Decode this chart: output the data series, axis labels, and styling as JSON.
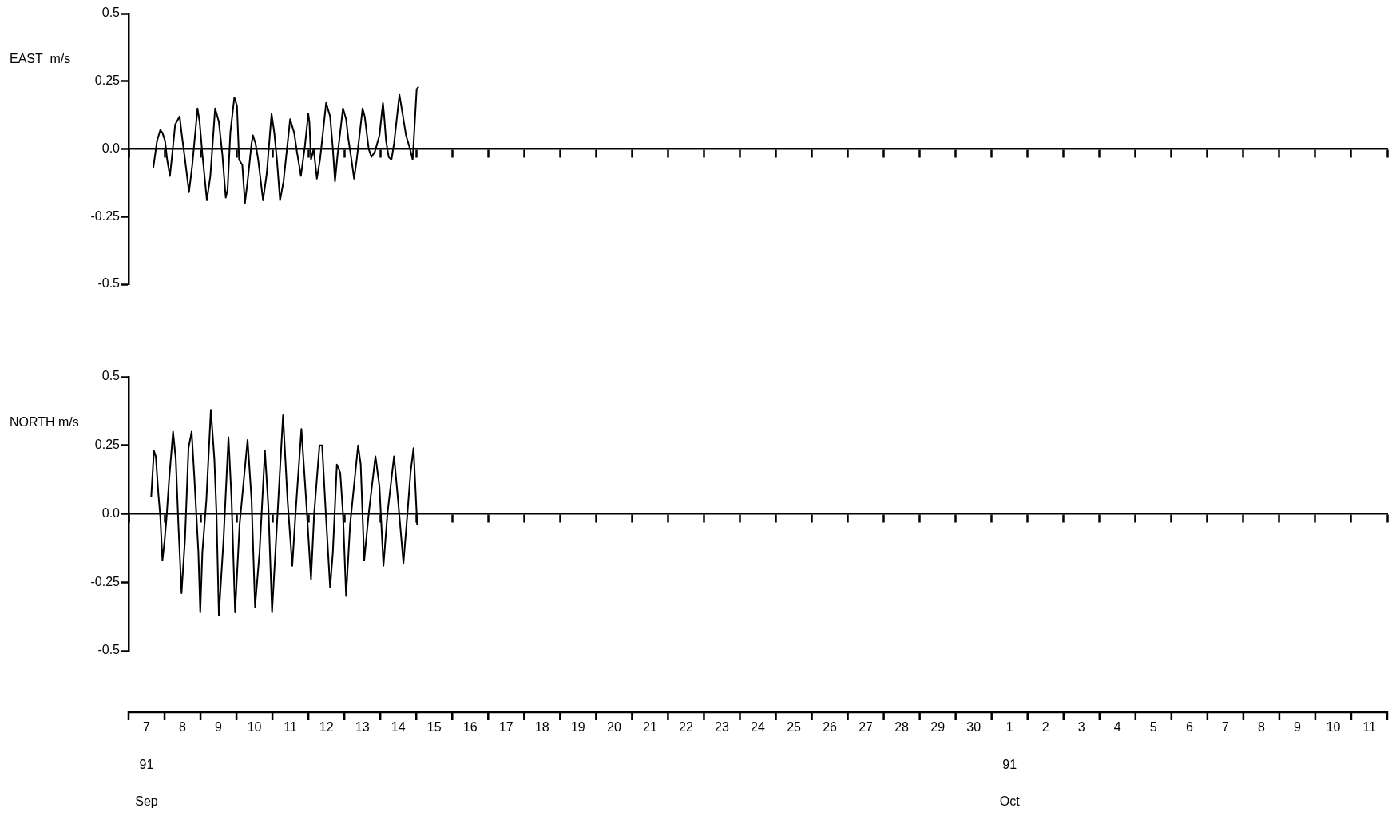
{
  "chart_data": [
    {
      "type": "line",
      "ylabel": "EAST  m/s",
      "color": "#000000",
      "tick_labels": "y",
      "xlim": [
        "--09-07",
        "--10-12"
      ],
      "ylim": [
        -0.5,
        0.5
      ],
      "yticks": [
        -0.5,
        -0.25,
        {
          "value": 0,
          "label": "0.0"
        },
        0.25,
        0.5
      ],
      "xticks": [
        {
          "value": "--09-07",
          "label": null
        },
        {
          "value": "--09-08",
          "label": null
        },
        {
          "value": "--09-09",
          "label": null
        },
        {
          "value": "--09-10",
          "label": null
        },
        {
          "value": "--09-11",
          "label": null
        },
        {
          "value": "--09-12",
          "label": null
        },
        {
          "value": "--09-13",
          "label": null
        },
        {
          "value": "--09-14",
          "label": null
        },
        {
          "value": "--09-15",
          "label": null
        },
        {
          "value": "--09-16",
          "label": null
        },
        {
          "value": "--09-17",
          "label": null
        },
        {
          "value": "--09-18",
          "label": null
        },
        {
          "value": "--09-19",
          "label": null
        },
        {
          "value": "--09-20",
          "label": null
        },
        {
          "value": "--09-21",
          "label": null
        },
        {
          "value": "--09-22",
          "label": null
        },
        {
          "value": "--09-23",
          "label": null
        },
        {
          "value": "--09-24",
          "label": null
        },
        {
          "value": "--09-25",
          "label": null
        },
        {
          "value": "--09-26",
          "label": null
        },
        {
          "value": "--09-27",
          "label": null
        },
        {
          "value": "--09-28",
          "label": null
        },
        {
          "value": "--09-29",
          "label": null
        },
        {
          "value": "--09-30",
          "label": null
        },
        {
          "value": "--10-01",
          "label": null
        },
        {
          "value": "--10-02",
          "label": null
        },
        {
          "value": "--10-03",
          "label": null
        },
        {
          "value": "--10-04",
          "label": null
        },
        {
          "value": "--10-05",
          "label": null
        },
        {
          "value": "--10-06",
          "label": null
        },
        {
          "value": "--10-07",
          "label": null
        },
        {
          "value": "--10-08",
          "label": null
        },
        {
          "value": "--10-09",
          "label": null
        },
        {
          "value": "--10-10",
          "label": null
        },
        {
          "value": "--10-11",
          "label": null
        },
        {
          "value": "--10-12",
          "label": null
        }
      ],
      "x": [
        "--09-07T16:30",
        "--09-07T19:00",
        "--09-07T21:10",
        "--09-07T22:35",
        "--09-08T00:20",
        "--09-08T01:45",
        "--09-08T03:35",
        "--09-08T04:45",
        "--09-08T07:05",
        "--09-08T10:05",
        "--09-08T11:20",
        "--09-08T13:40",
        "--09-08T16:20",
        "--09-08T18:30",
        "--09-08T21:20",
        "--09-08T22:00",
        "--09-08T23:25",
        "--09-09T01:15",
        "--09-09T04:15",
        "--09-09T06:35",
        "--09-09T09:45",
        "--09-09T12:15",
        "--09-09T14:35",
        "--09-09T16:50",
        "--09-09T18:05",
        "--09-09T19:55",
        "--09-09T22:35",
        "--09-10T00:20",
        "--09-10T01:45",
        "--09-10T03:55",
        "--09-10T05:40",
        "--09-10T07:25",
        "--09-10T10:05",
        "--09-10T11:00",
        "--09-10T12:45",
        "--09-10T14:30",
        "--09-10T17:45",
        "--09-10T20:15",
        "--09-10T23:25",
        "--09-11T01:15",
        "--09-11T03:00",
        "--09-11T05:05",
        "--09-11T07:25",
        "--09-11T11:50",
        "--09-11T14:30",
        "--09-11T16:20",
        "--09-11T19:00",
        "--09-11T21:40",
        "--09-11T23:55",
        "--09-12T00:40",
        "--09-12T01:45",
        "--09-12T03:30",
        "--09-12T05:40",
        "--09-12T07:45",
        "--09-12T11:50",
        "--09-12T14:30",
        "--09-12T16:20",
        "--09-12T17:45",
        "--09-12T19:30",
        "--09-12T23:05",
        "--09-13T01:10",
        "--09-13T02:35",
        "--09-13T04:45",
        "--09-13T06:30",
        "--09-13T08:15",
        "--09-13T12:10",
        "--09-13T13:35",
        "--09-13T16:15",
        "--09-13T18:05",
        "--09-13T20:25",
        "--09-13T23:25",
        "--09-14T01:45",
        "--09-14T02:35",
        "--09-14T03:50",
        "--09-14T05:35",
        "--09-14T07:25",
        "--09-14T09:10",
        "--09-14T12:45",
        "--09-14T14:50",
        "--09-14T17:10",
        "--09-14T19:50",
        "--09-14T21:35",
        "--09-15T00:15",
        "--09-15T01:30"
      ],
      "values": [
        -0.07,
        0.03,
        0.07,
        0.06,
        0.03,
        -0.04,
        -0.1,
        -0.04,
        0.09,
        0.12,
        0.06,
        -0.04,
        -0.16,
        -0.06,
        0.11,
        0.15,
        0.1,
        -0.02,
        -0.19,
        -0.1,
        0.15,
        0.1,
        -0.02,
        -0.18,
        -0.15,
        0.06,
        0.19,
        0.16,
        -0.04,
        -0.06,
        -0.2,
        -0.12,
        0.02,
        0.05,
        0.02,
        -0.04,
        -0.19,
        -0.09,
        0.13,
        0.06,
        -0.04,
        -0.19,
        -0.12,
        0.11,
        0.06,
        -0.01,
        -0.1,
        0.01,
        0.13,
        0.1,
        -0.04,
        0.0,
        -0.11,
        -0.04,
        0.17,
        0.12,
        0.0,
        -0.12,
        -0.02,
        0.15,
        0.11,
        0.04,
        -0.04,
        -0.11,
        -0.04,
        0.15,
        0.12,
        0.0,
        -0.03,
        -0.01,
        0.05,
        0.17,
        0.12,
        0.03,
        -0.03,
        -0.04,
        0.02,
        0.2,
        0.13,
        0.05,
        0.0,
        -0.04,
        0.22,
        0.23
      ]
    },
    {
      "type": "line",
      "ylabel": "NORTH m/s",
      "color": "#000000",
      "annotations": [
        "91",
        "Sep",
        "91",
        "Oct"
      ],
      "xlim": [
        "--09-07",
        "--10-12"
      ],
      "ylim": [
        -0.5,
        0.5
      ],
      "yticks": [
        -0.5,
        -0.25,
        {
          "value": 0,
          "label": "0.0"
        },
        0.25,
        0.5
      ],
      "xticks": [
        {
          "value": "--09-07",
          "label": null
        },
        {
          "value": "--09-07T12:00",
          "label": "7"
        },
        {
          "value": "--09-08",
          "label": null
        },
        {
          "value": "--09-08T12:00",
          "label": "8"
        },
        {
          "value": "--09-09",
          "label": null
        },
        {
          "value": "--09-09T12:00",
          "label": "9"
        },
        {
          "value": "--09-10",
          "label": null
        },
        {
          "value": "--09-10T12:00",
          "label": "10"
        },
        {
          "value": "--09-11",
          "label": null
        },
        {
          "value": "--09-11T12:00",
          "label": "11"
        },
        {
          "value": "--09-12",
          "label": null
        },
        {
          "value": "--09-12T12:00",
          "label": "12"
        },
        {
          "value": "--09-13",
          "label": null
        },
        {
          "value": "--09-13T12:00",
          "label": "13"
        },
        {
          "value": "--09-14",
          "label": null
        },
        {
          "value": "--09-14T12:00",
          "label": "14"
        },
        {
          "value": "--09-15",
          "label": null
        },
        {
          "value": "--09-15T12:00",
          "label": "15"
        },
        {
          "value": "--09-16",
          "label": null
        },
        {
          "value": "--09-16T12:00",
          "label": "16"
        },
        {
          "value": "--09-17",
          "label": null
        },
        {
          "value": "--09-17T12:00",
          "label": "17"
        },
        {
          "value": "--09-18",
          "label": null
        },
        {
          "value": "--09-18T12:00",
          "label": "18"
        },
        {
          "value": "--09-19",
          "label": null
        },
        {
          "value": "--09-19T12:00",
          "label": "19"
        },
        {
          "value": "--09-20",
          "label": null
        },
        {
          "value": "--09-20T12:00",
          "label": "20"
        },
        {
          "value": "--09-21",
          "label": null
        },
        {
          "value": "--09-21T12:00",
          "label": "21"
        },
        {
          "value": "--09-22",
          "label": null
        },
        {
          "value": "--09-22T12:00",
          "label": "22"
        },
        {
          "value": "--09-23",
          "label": null
        },
        {
          "value": "--09-23T12:00",
          "label": "23"
        },
        {
          "value": "--09-24",
          "label": null
        },
        {
          "value": "--09-24T12:00",
          "label": "24"
        },
        {
          "value": "--09-25",
          "label": null
        },
        {
          "value": "--09-25T12:00",
          "label": "25"
        },
        {
          "value": "--09-26",
          "label": null
        },
        {
          "value": "--09-26T12:00",
          "label": "26"
        },
        {
          "value": "--09-27",
          "label": null
        },
        {
          "value": "--09-27T12:00",
          "label": "27"
        },
        {
          "value": "--09-28",
          "label": null
        },
        {
          "value": "--09-28T12:00",
          "label": "28"
        },
        {
          "value": "--09-29",
          "label": null
        },
        {
          "value": "--09-29T12:00",
          "label": "29"
        },
        {
          "value": "--09-30",
          "label": null
        },
        {
          "value": "--09-30T12:00",
          "label": "30"
        },
        {
          "value": "--10-01",
          "label": null
        },
        {
          "value": "--10-01T12:00",
          "label": "1"
        },
        {
          "value": "--10-02",
          "label": null
        },
        {
          "value": "--10-02T12:00",
          "label": "2"
        },
        {
          "value": "--10-03",
          "label": null
        },
        {
          "value": "--10-03T12:00",
          "label": "3"
        },
        {
          "value": "--10-04",
          "label": null
        },
        {
          "value": "--10-04T12:00",
          "label": "4"
        },
        {
          "value": "--10-05",
          "label": null
        },
        {
          "value": "--10-05T12:00",
          "label": "5"
        },
        {
          "value": "--10-06",
          "label": null
        },
        {
          "value": "--10-06T12:00",
          "label": "6"
        },
        {
          "value": "--10-07",
          "label": null
        },
        {
          "value": "--10-07T12:00",
          "label": "7"
        },
        {
          "value": "--10-08",
          "label": null
        },
        {
          "value": "--10-08T12:00",
          "label": "8"
        },
        {
          "value": "--10-09",
          "label": null
        },
        {
          "value": "--10-09T12:00",
          "label": "9"
        },
        {
          "value": "--10-10",
          "label": null
        },
        {
          "value": "--10-10T12:00",
          "label": "10"
        },
        {
          "value": "--10-11",
          "label": null
        },
        {
          "value": "--10-11T12:00",
          "label": "11"
        },
        {
          "value": "--10-12",
          "label": null
        }
      ],
      "x": [
        "--09-07T15:05",
        "--09-07T16:55",
        "--09-07T18:10",
        "--09-07T19:55",
        "--09-07T21:10",
        "--09-07T22:35",
        "--09-08T00:00",
        "--09-08T01:15",
        "--09-08T03:00",
        "--09-08T05:40",
        "--09-08T07:30",
        "--09-08T09:15",
        "--09-08T11:20",
        "--09-08T13:40",
        "--09-08T16:00",
        "--09-08T18:05",
        "--09-08T19:55",
        "--09-08T22:35",
        "--09-08T23:50",
        "--09-09T01:15",
        "--09-09T03:55",
        "--09-09T06:55",
        "--09-09T09:15",
        "--09-09T10:40",
        "--09-09T12:15",
        "--09-09T15:25",
        "--09-09T18:40",
        "--09-09T20:45",
        "--09-09T23:05",
        "--09-10T02:05",
        "--09-10T07:25",
        "--09-10T10:05",
        "--09-10T12:25",
        "--09-10T15:25",
        "--09-10T19:00",
        "--09-10T21:20",
        "--09-10T23:45",
        "--09-11T03:00",
        "--09-11T07:05",
        "--09-11T10:05",
        "--09-11T13:15",
        "--09-11T15:25",
        "--09-11T19:20",
        "--09-11T22:30",
        "--09-12T01:45",
        "--09-12T03:50",
        "--09-12T07:25",
        "--09-12T09:10",
        "--09-12T11:20",
        "--09-12T14:30",
        "--09-12T16:20",
        "--09-12T19:00",
        "--09-12T21:15",
        "--09-12T23:05",
        "--09-13T01:10",
        "--09-13T03:50",
        "--09-13T09:10",
        "--09-13T10:55",
        "--09-13T13:15",
        "--09-13T16:15",
        "--09-13T20:45",
        "--09-13T23:25",
        "--09-14T02:05",
        "--09-14T04:45",
        "--09-14T09:10",
        "--09-14T11:50",
        "--09-14T15:25",
        "--09-14T18:05",
        "--09-14T20:10",
        "--09-14T22:10",
        "--09-15T00:15",
        "--09-15T00:35"
      ],
      "values": [
        0.06,
        0.23,
        0.21,
        0.07,
        -0.01,
        -0.17,
        -0.1,
        -0.02,
        0.12,
        0.3,
        0.2,
        -0.04,
        -0.29,
        -0.09,
        0.24,
        0.3,
        0.13,
        -0.14,
        -0.36,
        -0.14,
        0.05,
        0.38,
        0.2,
        0.0,
        -0.37,
        -0.09,
        0.28,
        0.05,
        -0.36,
        -0.04,
        0.27,
        0.05,
        -0.34,
        -0.14,
        0.23,
        0.02,
        -0.36,
        -0.04,
        0.36,
        0.05,
        -0.19,
        0.0,
        0.31,
        0.05,
        -0.24,
        0.0,
        0.25,
        0.25,
        0.03,
        -0.27,
        -0.14,
        0.18,
        0.15,
        0.0,
        -0.3,
        -0.04,
        0.25,
        0.18,
        -0.17,
        0.0,
        0.21,
        0.1,
        -0.19,
        0.0,
        0.21,
        0.05,
        -0.18,
        0.0,
        0.15,
        0.24,
        0.0,
        -0.04
      ]
    }
  ]
}
